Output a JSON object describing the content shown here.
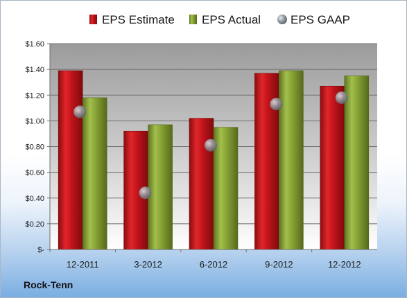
{
  "chart_data": {
    "type": "bar",
    "categories": [
      "12-2011",
      "3-2012",
      "6-2012",
      "9-2012",
      "12-2012"
    ],
    "series": [
      {
        "name": "EPS Estimate",
        "mark": "bar",
        "color": "#c0141a",
        "values": [
          1.39,
          0.92,
          1.02,
          1.37,
          1.27
        ]
      },
      {
        "name": "EPS Actual",
        "mark": "bar",
        "color": "#7f9a2e",
        "values": [
          1.18,
          0.97,
          0.95,
          1.39,
          1.35
        ]
      },
      {
        "name": "EPS GAAP",
        "mark": "point",
        "color": "#9aa3ab",
        "values": [
          1.07,
          0.44,
          0.81,
          1.13,
          1.18
        ]
      }
    ],
    "ylim": [
      0,
      1.6
    ],
    "yticks": [
      0,
      0.2,
      0.4,
      0.6,
      0.8,
      1.0,
      1.2,
      1.4,
      1.6
    ],
    "ytick_labels": [
      "$-",
      "$0.20",
      "$0.40",
      "$0.60",
      "$0.80",
      "$1.00",
      "$1.20",
      "$1.40",
      "$1.60"
    ],
    "grid": true,
    "legend": "top"
  },
  "footer": {
    "company": "Rock-Tenn"
  }
}
